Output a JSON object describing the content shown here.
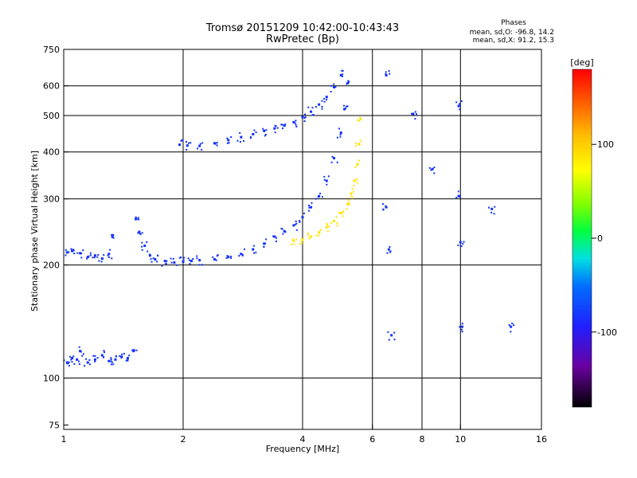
{
  "chart_data": {
    "type": "scatter",
    "title": "Tromsø 20151209 10:42:00-10:43:43",
    "subtitle": "RwPretec (Bp)",
    "xlabel": "Frequency [MHz]",
    "ylabel": "Stationary phase Virtual Height [km]",
    "x_scale": "log2",
    "y_scale": "log",
    "xlim": [
      1,
      16
    ],
    "ylim": [
      73,
      750
    ],
    "x_ticks": [
      1,
      2,
      4,
      6,
      8,
      10,
      16
    ],
    "y_ticks": [
      75,
      100,
      200,
      300,
      400,
      500,
      600,
      750
    ],
    "grid_x": [
      2,
      4,
      6,
      8,
      10
    ],
    "grid_y": [
      100,
      200,
      300,
      400,
      500,
      600
    ],
    "stats": {
      "header": "Phases",
      "line_o": "mean, sd,O: -96.8, 14.2",
      "line_x": "mean, sd,X:  91.2, 15.3"
    },
    "colorbar": {
      "label": "[deg]",
      "range": [
        -180,
        180
      ],
      "ticks": [
        100,
        0,
        -100
      ]
    },
    "series": [
      {
        "name": "O-mode trace (blue)",
        "phase": -100,
        "x": [
          1.02,
          1.05,
          1.1,
          1.15,
          1.2,
          1.25,
          1.3,
          1.33,
          1.52,
          1.55,
          1.6,
          1.65,
          1.7,
          1.8,
          1.9,
          2.0,
          2.1,
          2.2,
          2.4,
          2.6,
          2.8,
          3.0,
          3.2,
          3.4,
          3.6,
          3.8,
          4.0,
          4.2,
          4.4,
          4.6,
          4.8,
          5.0,
          5.1,
          5.2
        ],
        "y": [
          216,
          218,
          215,
          210,
          212,
          208,
          214,
          240,
          265,
          245,
          225,
          212,
          207,
          205,
          203,
          204,
          205,
          206,
          207,
          210,
          214,
          220,
          228,
          238,
          246,
          255,
          268,
          285,
          305,
          335,
          385,
          450,
          520,
          610
        ]
      },
      {
        "name": "Upper O trace",
        "phase": -100,
        "x": [
          1.96,
          2.05,
          2.2,
          2.4,
          2.6,
          2.8,
          3.0,
          3.2,
          3.4,
          3.6,
          3.8,
          4.0,
          4.2,
          4.4,
          4.6,
          4.8,
          5.0
        ],
        "y": [
          418,
          416,
          415,
          422,
          430,
          438,
          446,
          455,
          462,
          470,
          480,
          495,
          512,
          535,
          560,
          595,
          640
        ]
      },
      {
        "name": "Low-altitude echoes",
        "phase": -100,
        "x": [
          1.02,
          1.05,
          1.08,
          1.1,
          1.15,
          1.2,
          1.25,
          1.3,
          1.35,
          1.4,
          1.45,
          1.5
        ],
        "y": [
          110,
          113,
          112,
          118,
          110,
          112,
          115,
          111,
          112,
          114,
          113,
          118
        ]
      },
      {
        "name": "X-mode trace (yellow)",
        "phase": 100,
        "x": [
          3.8,
          4.0,
          4.2,
          4.4,
          4.6,
          4.8,
          5.0,
          5.2,
          5.3,
          5.4,
          5.5,
          5.55,
          5.6
        ],
        "y": [
          232,
          234,
          238,
          244,
          252,
          262,
          275,
          290,
          310,
          335,
          370,
          420,
          490
        ]
      },
      {
        "name": "Scattered points",
        "phase": -90,
        "x": [
          6.5,
          6.5,
          6.6,
          6.7,
          7.6,
          8.5,
          9.9,
          9.9,
          10.0,
          10.1,
          12.0,
          13.4
        ],
        "y": [
          640,
          285,
          220,
          130,
          505,
          360,
          530,
          305,
          230,
          137,
          282,
          137
        ]
      }
    ]
  }
}
